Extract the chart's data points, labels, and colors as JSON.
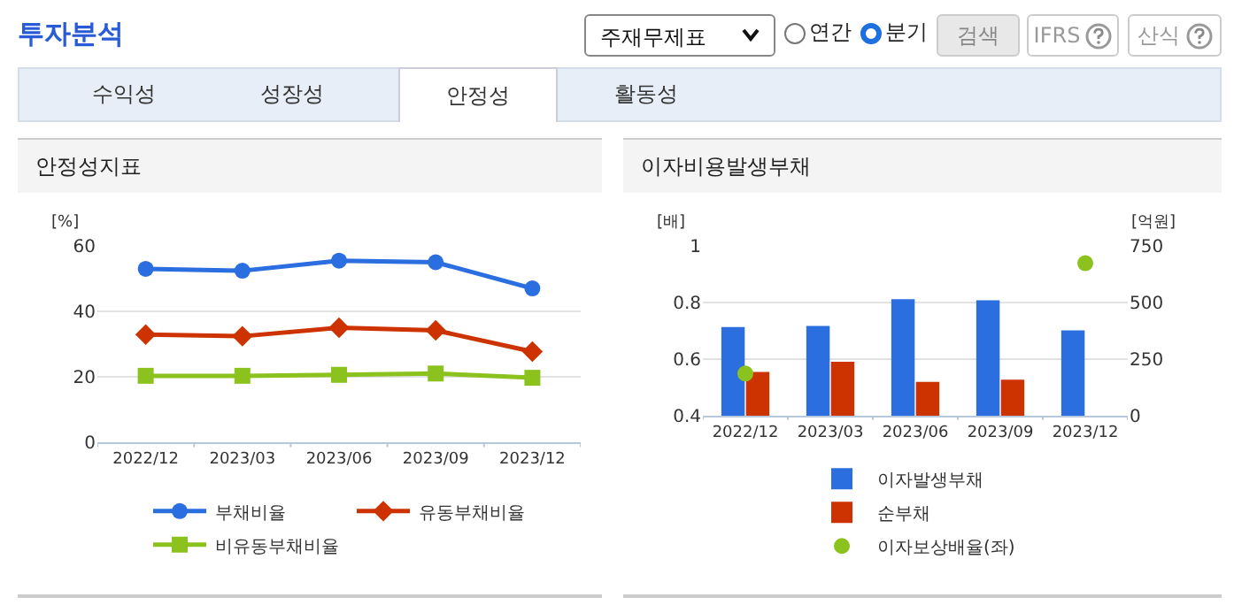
{
  "chart_data": [
    {
      "type": "other",
      "title": "투자분석",
      "annotations": [
        "주재무제표",
        "연간",
        "분기",
        "검색",
        "IFRS",
        "산식",
        "수익성",
        "성장성",
        "안정성",
        "활동성"
      ]
    },
    {
      "type": "line",
      "title": "안정성지표",
      "ylabel": "[%]",
      "categories": [
        "2022/12",
        "2023/03",
        "2023/06",
        "2023/09",
        "2023/12"
      ],
      "ylim": [
        0,
        60
      ],
      "yticks": [
        0,
        20,
        40,
        60
      ],
      "grid": "y",
      "legend": "bottom",
      "series": [
        {
          "name": "부채비율",
          "color": "#2a6ee0",
          "marker": "circle",
          "values": [
            53.0,
            52.4,
            55.5,
            55.0,
            47.0
          ]
        },
        {
          "name": "유동부채비율",
          "color": "#cc3300",
          "marker": "diamond",
          "values": [
            32.9,
            32.4,
            35.0,
            34.2,
            27.7
          ]
        },
        {
          "name": "비유동부채비율",
          "color": "#8cc21e",
          "marker": "square",
          "values": [
            20.3,
            20.3,
            20.6,
            21.0,
            19.7
          ]
        }
      ]
    },
    {
      "type": "bar",
      "title": "이자비용발생부채",
      "ylabel": "[배]",
      "y2label": "[억원]",
      "categories": [
        "2022/12",
        "2023/03",
        "2023/06",
        "2023/09",
        "2023/12"
      ],
      "ylim": [
        0.4,
        1
      ],
      "yticks": [
        0.4,
        0.6,
        0.8,
        1
      ],
      "y2lim": [
        0,
        750
      ],
      "y2ticks": [
        0,
        250,
        500,
        750
      ],
      "grid": "y",
      "legend": "bottom",
      "series": [
        {
          "name": "이자발생부채",
          "color": "#2a6ee0",
          "axis": "y2",
          "values": [
            392,
            396,
            515,
            510,
            377
          ]
        },
        {
          "name": "순부채",
          "color": "#cc3300",
          "axis": "y2",
          "values": [
            193,
            238,
            149,
            159,
            0
          ]
        },
        {
          "name": "이자보상배율(좌)",
          "type": "scatter",
          "marker": "circle",
          "color": "#8cc21e",
          "axis": "y",
          "values": [
            0.549,
            null,
            null,
            null,
            0.939
          ]
        }
      ]
    }
  ]
}
